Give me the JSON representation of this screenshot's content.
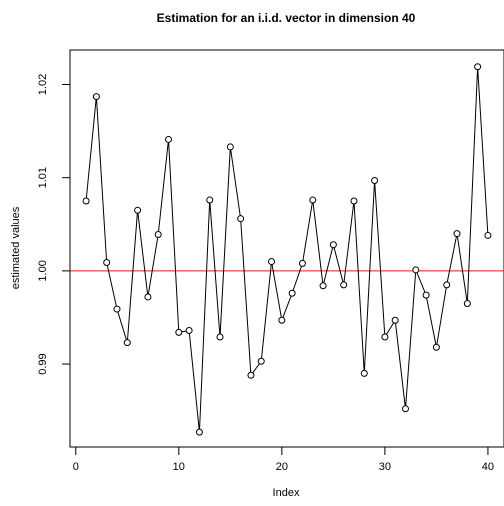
{
  "chart_data": {
    "type": "scatter",
    "title": "Estimation for an i.i.d. vector in dimension 40",
    "xlabel": "Index",
    "ylabel": "estimated values",
    "xlim": [
      -0.56,
      41.56
    ],
    "ylim": [
      0.9811,
      1.0237
    ],
    "x_ticks": [
      0,
      10,
      20,
      30,
      40
    ],
    "y_ticks": [
      0.99,
      1.0,
      1.01,
      1.02
    ],
    "x_tick_labels": [
      "0",
      "10",
      "20",
      "30",
      "40"
    ],
    "y_tick_labels": [
      "0.99",
      "1.00",
      "1.01",
      "1.02"
    ],
    "reference_line": {
      "y": 1.0,
      "color": "#e8191a"
    },
    "line_color": "#000000",
    "marker": "open-circle",
    "grid": false,
    "x": [
      1,
      2,
      3,
      4,
      5,
      6,
      7,
      8,
      9,
      10,
      11,
      12,
      13,
      14,
      15,
      16,
      17,
      18,
      19,
      20,
      21,
      22,
      23,
      24,
      25,
      26,
      27,
      28,
      29,
      30,
      31,
      32,
      33,
      34,
      35,
      36,
      37,
      38,
      39,
      40
    ],
    "values": [
      1.0075,
      1.0187,
      1.0009,
      0.9959,
      0.9923,
      1.0065,
      0.9972,
      1.0039,
      1.0141,
      0.9934,
      0.9936,
      0.9827,
      1.0076,
      0.9929,
      1.0133,
      1.0056,
      0.9888,
      0.9903,
      1.001,
      0.9947,
      0.9976,
      1.0008,
      1.0076,
      0.9984,
      1.0028,
      0.9985,
      1.0075,
      0.989,
      1.0097,
      0.9929,
      0.9947,
      0.9852,
      1.0001,
      0.9974,
      0.9918,
      0.9985,
      1.004,
      0.9965,
      1.0219,
      1.0038
    ]
  }
}
